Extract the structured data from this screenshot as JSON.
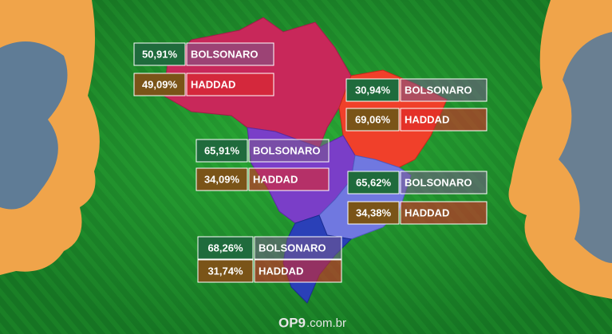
{
  "regions": [
    {
      "rows": [
        {
          "percent": "50,91%",
          "candidate": "BOLSONARO"
        },
        {
          "percent": "49,09%",
          "candidate": "HADDAD"
        }
      ]
    },
    {
      "rows": [
        {
          "percent": "30,94%",
          "candidate": "BOLSONARO"
        },
        {
          "percent": "69,06%",
          "candidate": "HADDAD"
        }
      ]
    },
    {
      "rows": [
        {
          "percent": "65,91%",
          "candidate": "BOLSONARO"
        },
        {
          "percent": "34,09%",
          "candidate": "HADDAD"
        }
      ]
    },
    {
      "rows": [
        {
          "percent": "65,62%",
          "candidate": "BOLSONARO"
        },
        {
          "percent": "34,38%",
          "candidate": "HADDAD"
        }
      ]
    },
    {
      "rows": [
        {
          "percent": "68,26%",
          "candidate": "BOLSONARO"
        },
        {
          "percent": "31,74%",
          "candidate": "HADDAD"
        }
      ]
    }
  ],
  "footer": {
    "logo": "OP9",
    "domain": ".com.br"
  }
}
